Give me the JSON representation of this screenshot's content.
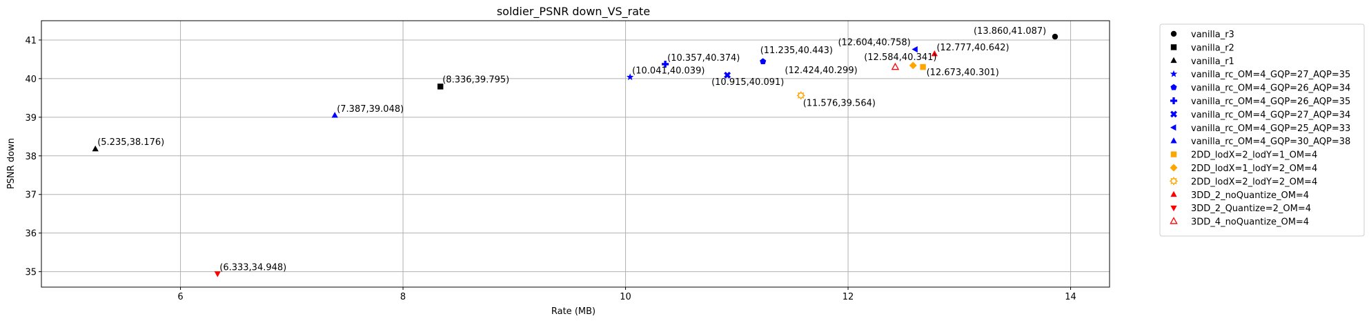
{
  "chart_data": {
    "type": "scatter",
    "title": "soldier_PSNR down_VS_rate",
    "xlabel": "Rate (MB)",
    "ylabel": "PSNR down",
    "xlim": [
      4.75,
      14.35
    ],
    "ylim": [
      34.6,
      41.5
    ],
    "xticks": [
      6,
      8,
      10,
      12,
      14
    ],
    "yticks": [
      35,
      36,
      37,
      38,
      39,
      40,
      41
    ],
    "grid": true,
    "legend_position": "outside-right",
    "series": [
      {
        "name": "vanilla_r3",
        "marker": "circle",
        "color": "#000000",
        "points": [
          {
            "x": 13.86,
            "y": 41.087,
            "label": "(13.860,41.087)"
          }
        ]
      },
      {
        "name": "vanilla_r2",
        "marker": "square",
        "color": "#000000",
        "points": [
          {
            "x": 8.336,
            "y": 39.795,
            "label": "(8.336,39.795)"
          }
        ]
      },
      {
        "name": "vanilla_r1",
        "marker": "triangle-up",
        "color": "#000000",
        "points": [
          {
            "x": 5.235,
            "y": 38.176,
            "label": "(5.235,38.176)"
          }
        ]
      },
      {
        "name": "vanilla_rc_OM=4_GQP=27_AQP=35",
        "marker": "star",
        "color": "#0000ff",
        "points": [
          {
            "x": 10.041,
            "y": 40.039,
            "label": "(10.041,40.039)"
          }
        ]
      },
      {
        "name": "vanilla_rc_OM=4_GQP=26_AQP=34",
        "marker": "pentagon",
        "color": "#0000ff",
        "points": [
          {
            "x": 11.235,
            "y": 40.443,
            "label": "(11.235,40.443)"
          }
        ]
      },
      {
        "name": "vanilla_rc_OM=4_GQP=26_AQP=35",
        "marker": "plus",
        "color": "#0000ff",
        "points": [
          {
            "x": 10.357,
            "y": 40.374,
            "label": "(10.357,40.374)"
          }
        ]
      },
      {
        "name": "vanilla_rc_OM=4_GQP=27_AQP=34",
        "marker": "x",
        "color": "#0000ff",
        "points": [
          {
            "x": 10.915,
            "y": 40.091,
            "label": "(10.915,40.091)"
          }
        ]
      },
      {
        "name": "vanilla_rc_OM=4_GQP=25_AQP=33",
        "marker": "triangle-left",
        "color": "#0000ff",
        "points": [
          {
            "x": 12.604,
            "y": 40.758,
            "label": "(12.604,40.758)"
          }
        ]
      },
      {
        "name": "vanilla_rc_OM=4_GQP=30_AQP=38",
        "marker": "triangle-up",
        "color": "#0000ff",
        "points": [
          {
            "x": 7.387,
            "y": 39.048,
            "label": "(7.387,39.048)"
          }
        ]
      },
      {
        "name": "2DD_lodX=2_lodY=1_OM=4",
        "marker": "square",
        "color": "#ffa500",
        "points": [
          {
            "x": 12.673,
            "y": 40.301,
            "label": "(12.673,40.301)"
          }
        ]
      },
      {
        "name": "2DD_lodX=1_lodY=2_OM=4",
        "marker": "diamond",
        "color": "#ffa500",
        "points": [
          {
            "x": 12.584,
            "y": 40.341,
            "label": "(12.584,40.341)"
          }
        ]
      },
      {
        "name": "2DD_lodX=2_lodY=2_OM=4",
        "marker": "sun",
        "color": "#ffa500",
        "points": [
          {
            "x": 11.576,
            "y": 39.564,
            "label": "(11.576,39.564)"
          }
        ]
      },
      {
        "name": "3DD_2_noQuantize_OM=4",
        "marker": "triangle-up",
        "color": "#ff0000",
        "points": [
          {
            "x": 12.777,
            "y": 40.642,
            "label": "(12.777,40.642)"
          }
        ]
      },
      {
        "name": "3DD_2_Quantize=2_OM=4",
        "marker": "triangle-down",
        "color": "#ff0000",
        "points": [
          {
            "x": 6.333,
            "y": 34.948,
            "label": "(6.333,34.948)"
          }
        ]
      },
      {
        "name": "3DD_4_noQuantize_OM=4",
        "marker": "triangle-up-open",
        "color": "#ff0000",
        "points": [
          {
            "x": 12.424,
            "y": 40.299,
            "label": "(12.424,40.299)"
          }
        ]
      }
    ]
  }
}
